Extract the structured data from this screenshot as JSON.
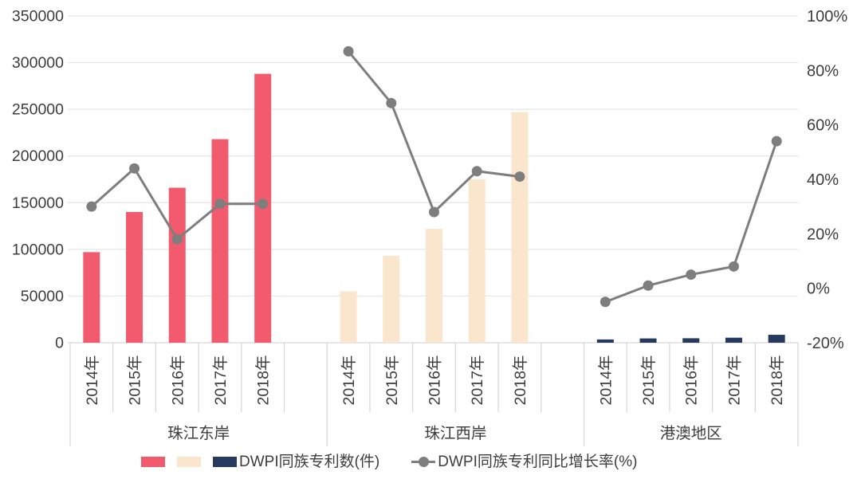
{
  "chart_data": {
    "type": "bar+line combo",
    "title": "",
    "bar_series_name": "DWPI同族专利数(件)",
    "line_series_name": "DWPI同族专利同比增长率(%)",
    "left_axis": {
      "min": 0,
      "max": 350000,
      "ticks": [
        "350000",
        "300000",
        "250000",
        "200000",
        "150000",
        "100000",
        "50000",
        "0"
      ]
    },
    "right_axis": {
      "min": -20,
      "max": 100,
      "ticks": [
        "100%",
        "80%",
        "60%",
        "40%",
        "20%",
        "0%",
        "-20%"
      ]
    },
    "grid": "horizontal-on",
    "legend_position": "bottom",
    "groups": [
      {
        "label": "珠江东岸",
        "color_key": "east",
        "years": [
          "2014年",
          "2015年",
          "2016年",
          "2017年",
          "2018年"
        ],
        "bar_values": [
          97000,
          140000,
          166000,
          218000,
          288000
        ],
        "line_values_pct": [
          30,
          44,
          18,
          31,
          31
        ]
      },
      {
        "label": "珠江西岸",
        "color_key": "west",
        "years": [
          "2014年",
          "2015年",
          "2016年",
          "2017年",
          "2018年"
        ],
        "bar_values": [
          55000,
          93000,
          122000,
          175000,
          247000
        ],
        "line_values_pct": [
          87,
          68,
          28,
          43,
          41
        ]
      },
      {
        "label": "港澳地区",
        "color_key": "hk",
        "years": [
          "2014年",
          "2015年",
          "2016年",
          "2017年",
          "2018年"
        ],
        "bar_values": [
          3500,
          4600,
          4800,
          5400,
          8500
        ],
        "line_values_pct": [
          -5,
          1,
          5,
          8,
          54
        ]
      }
    ]
  },
  "legend": {
    "bars_label": "DWPI同族专利数(件)",
    "line_label": "DWPI同族专利同比增长率(%)"
  },
  "colors": {
    "east": "#F25A6E",
    "west": "#FAE6CC",
    "hk": "#253A5E",
    "line": "#7E7E7E",
    "grid": "#E5E5E5",
    "axis_line": "#D6D6D6",
    "text": "#3D3D3D"
  }
}
